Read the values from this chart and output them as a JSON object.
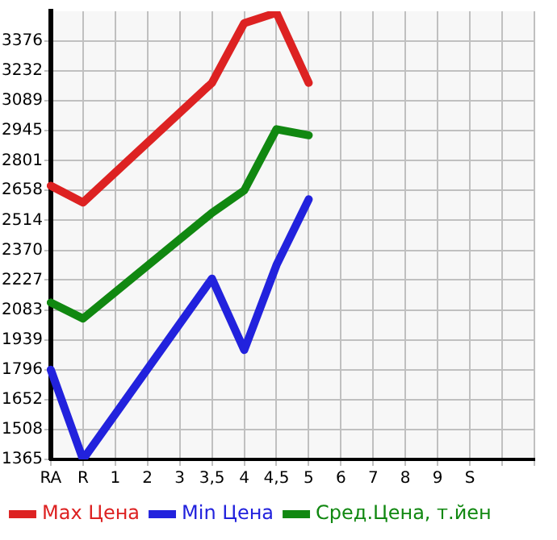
{
  "chart_data": {
    "type": "line",
    "categories": [
      "RA",
      "R",
      "1",
      "2",
      "3",
      "3,5",
      "4",
      "4,5",
      "5",
      "6",
      "7",
      "8",
      "9",
      "S",
      null,
      null
    ],
    "series": [
      {
        "name": "Max Цена",
        "color": "#dd2222",
        "values": [
          2680,
          2600,
          null,
          null,
          null,
          3175,
          3462,
          3512,
          3175,
          null,
          null,
          null,
          null,
          null,
          null,
          null
        ]
      },
      {
        "name": "Min Цена",
        "color": "#2222dd",
        "values": [
          1796,
          1365,
          null,
          null,
          null,
          2234,
          1891,
          2299,
          2615,
          null,
          null,
          null,
          null,
          null,
          null,
          null
        ]
      },
      {
        "name": "Сред.Цена, т.йен",
        "color": "#118811",
        "values": [
          2119,
          2042,
          null,
          null,
          null,
          2550,
          2658,
          2952,
          2923,
          null,
          null,
          null,
          null,
          null,
          null,
          null
        ]
      }
    ],
    "ylim": [
      1365,
      3519
    ],
    "yticks": [
      1365,
      1508,
      1652,
      1796,
      1939,
      2083,
      2227,
      2370,
      2514,
      2658,
      2801,
      2945,
      3089,
      3232,
      3376
    ],
    "grid": true,
    "legend": "bottom",
    "marker": "none",
    "line_style": "solid"
  }
}
